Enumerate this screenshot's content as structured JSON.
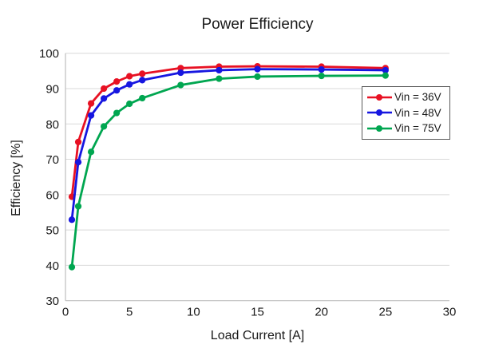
{
  "chart_data": {
    "type": "line",
    "title": "Power Efficiency",
    "xlabel": "Load Current [A]",
    "ylabel": "Efficiency [%]",
    "xlim": [
      0,
      30
    ],
    "ylim": [
      30,
      100
    ],
    "x_ticks": [
      0,
      5,
      10,
      15,
      20,
      25,
      30
    ],
    "y_ticks": [
      30,
      40,
      50,
      60,
      70,
      80,
      90,
      100
    ],
    "grid": "horizontal-only",
    "legend_position": "inside-right",
    "x": [
      0.5,
      1,
      2,
      3,
      4,
      5,
      6,
      9,
      12,
      15,
      20,
      25
    ],
    "series": [
      {
        "name": "Vin = 36V",
        "color": "#e81123",
        "values": [
          59.4,
          74.9,
          85.8,
          90.0,
          92.0,
          93.5,
          94.2,
          95.8,
          96.2,
          96.3,
          96.2,
          95.8
        ]
      },
      {
        "name": "Vin = 48V",
        "color": "#1616e0",
        "values": [
          52.9,
          69.2,
          82.4,
          87.2,
          89.5,
          91.2,
          92.4,
          94.5,
          95.2,
          95.5,
          95.4,
          95.2
        ]
      },
      {
        "name": "Vin = 75V",
        "color": "#00a650",
        "values": [
          39.5,
          56.7,
          72.1,
          79.3,
          83.1,
          85.7,
          87.3,
          91.0,
          92.8,
          93.4,
          93.6,
          93.7
        ]
      }
    ],
    "colors": {
      "gridline": "#d9d9d9",
      "axis_line": "#bfbfbf",
      "text": "#1a1a1a",
      "legend_border": "#595959",
      "background": "#ffffff"
    }
  }
}
